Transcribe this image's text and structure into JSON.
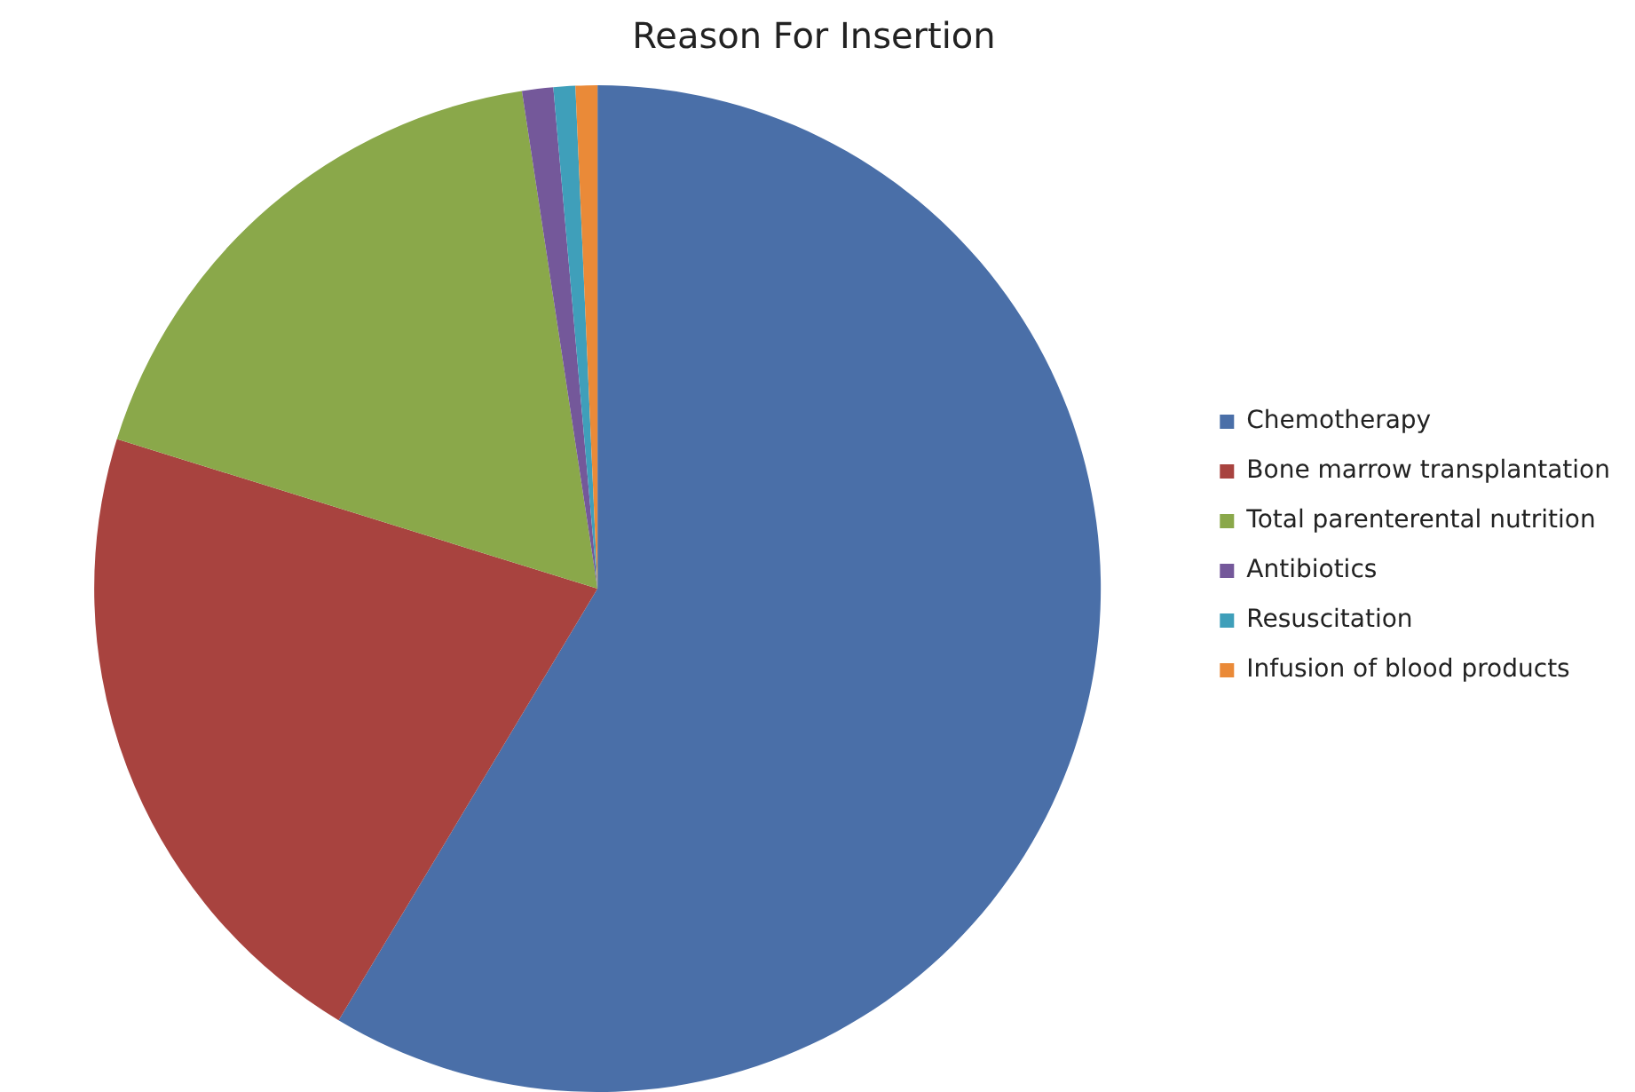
{
  "chart_data": {
    "type": "pie",
    "title": "Reason For Insertion",
    "categories": [
      "Chemotherapy",
      "Bone marrow transplantation",
      "Total parenterental nutrition",
      "Antibiotics",
      "Resuscitation",
      "Infusion of blood products"
    ],
    "values": [
      58.6,
      21.2,
      17.8,
      1.0,
      0.7,
      0.7
    ],
    "colors": [
      "#4a6fa8",
      "#a8433f",
      "#8aa84a",
      "#74589a",
      "#3f9fba",
      "#ea8a38"
    ],
    "legend": "right"
  }
}
